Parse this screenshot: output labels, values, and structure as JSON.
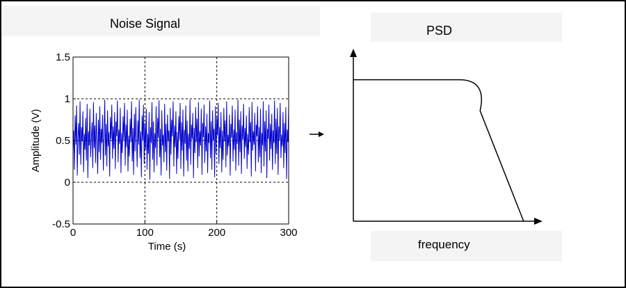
{
  "chart_data": [
    {
      "type": "line",
      "title": "Noise Signal",
      "xlabel": "Time (s)",
      "ylabel": "Amplitude (V)",
      "xlim": [
        0,
        300
      ],
      "ylim": [
        -0.5,
        1.5
      ],
      "xticks": [
        0,
        100,
        200,
        300
      ],
      "yticks": [
        -0.5,
        0,
        0.5,
        1,
        1.5
      ],
      "xtick_labels": [
        "0",
        "100",
        "200",
        "300"
      ],
      "ytick_labels": [
        "-0.5",
        "0",
        "0.5",
        "1",
        "1.5"
      ],
      "grid": "dashed, at ticks",
      "line_color": "#0000cc",
      "series": [
        {
          "x_range": [
            0,
            300
          ],
          "values": [
            0.38,
            0.62,
            0.15,
            0.8,
            0.45,
            0.92,
            0.08,
            0.55,
            0.71,
            0.33,
            0.97,
            0.21,
            0.66,
            0.49,
            0.85,
            0.12,
            0.58,
            0.39,
            0.77,
            0.26,
            0.94,
            0.05,
            0.61,
            0.44,
            0.88,
            0.3,
            0.53,
            0.72,
            0.17,
            0.96,
            0.41,
            0.68,
            0.23,
            0.83,
            0.5,
            0.1,
            0.75,
            0.36,
            0.91,
            0.27,
            0.64,
            0.47,
            0.81,
            0.14,
            0.57,
            0.99,
            0.32,
            0.7,
            0.19,
            0.86,
            0.43,
            0.6,
            0.07,
            0.78,
            0.52,
            0.93,
            0.28,
            0.67,
            0.4,
            0.84,
            0.16,
            0.73,
            0.55,
            0.98,
            0.24,
            0.63,
            0.46,
            0.89,
            0.11,
            0.59,
            0.35,
            0.79,
            0.51,
            0.95,
            0.2,
            0.69,
            0.42,
            0.87,
            0.13,
            0.56,
            0.31,
            0.76,
            0.48,
            0.97,
            0.25,
            0.65,
            0.09,
            0.82,
            0.37,
            0.9,
            0.54,
            0.18,
            0.74,
            0.45,
            0.99,
            0.29,
            0.61,
            0.06,
            0.8,
            0.5,
            0.93,
            0.22,
            0.71,
            0.39,
            0.88,
            0.15,
            0.58,
            0.34,
            0.84,
            0.03,
            0.66,
            0.47,
            0.96,
            0.27,
            0.73,
            0.12,
            0.59,
            0.41,
            0.91,
            0.2,
            0.77,
            0.53,
            0.98,
            0.3,
            0.64,
            0.08,
            0.86,
            0.44,
            0.57,
            0.24,
            0.94,
            0.36,
            0.7,
            0.14,
            0.81,
            0.49,
            0.62,
            0.04,
            0.89,
            0.33,
            0.75,
            0.55,
            0.97,
            0.19,
            0.68,
            0.42,
            0.85,
            0.1,
            0.6,
            0.28,
            0.79,
            0.51,
            0.95,
            0.16,
            0.72,
            0.38,
            0.87,
            0.07,
            0.63,
            0.46,
            0.92,
            0.26,
            0.74,
            0.13,
            0.58,
            0.4,
            0.99,
            0.21,
            0.69,
            0.52,
            0.83,
            0.05,
            0.65,
            0.35,
            0.9,
            0.48,
            0.76,
            0.17,
            0.96,
            0.31,
            0.61,
            0.44,
            0.88,
            0.09,
            0.71,
            0.54,
            0.93,
            0.23,
            0.67,
            0.37,
            0.82,
            0.11,
            0.59,
            0.47,
            0.98,
            0.29,
            0.73,
            0.15,
            0.86,
            0.5,
            0.64,
            0.06,
            0.91,
            0.34,
            0.78,
            0.56,
            0.95,
            0.22,
            0.66,
            0.41,
            0.84,
            0.12,
            0.62,
            0.27,
            0.89,
            0.49,
            0.74,
            0.18,
            0.97,
            0.32,
            0.57,
            0.43,
            0.81,
            0.08,
            0.7,
            0.53,
            0.92,
            0.25,
            0.63,
            0.39,
            0.87,
            0.14,
            0.6,
            0.46,
            0.99,
            0.2,
            0.75,
            0.36,
            0.85,
            0.1,
            0.68,
            0.51,
            0.94,
            0.28,
            0.65,
            0.42,
            0.8,
            0.16,
            0.58,
            0.33,
            0.9,
            0.48,
            0.72,
            0.07,
            0.96,
            0.38,
            0.61,
            0.45,
            0.83,
            0.13,
            0.69,
            0.55,
            0.91,
            0.24,
            0.66,
            0.3,
            0.88,
            0.11,
            0.59,
            0.44,
            0.97,
            0.19,
            0.73,
            0.37,
            0.86,
            0.05,
            0.64,
            0.52,
            0.93,
            0.26,
            0.7,
            0.4,
            0.82,
            0.15,
            0.62,
            0.47,
            0.98,
            0.22,
            0.76,
            0.34,
            0.89,
            0.09,
            0.67,
            0.5,
            0.95,
            0.29,
            0.57,
            0.43,
            0.84,
            0.17,
            0.71,
            0.35,
            0.9,
            0.04,
            0.63,
            0.48,
            0.92
          ]
        }
      ]
    },
    {
      "type": "line",
      "title": "PSD",
      "xlabel": "frequency",
      "ylabel": "",
      "shape": "flat plateau, rounded knee, linear roll-off to zero",
      "curve_points": [
        {
          "x": 0.0,
          "y": 0.82
        },
        {
          "x": 0.56,
          "y": 0.82
        },
        {
          "x": 0.67,
          "y": 0.64
        },
        {
          "x": 0.9,
          "y": 0.0
        }
      ]
    }
  ],
  "arrow": "→"
}
